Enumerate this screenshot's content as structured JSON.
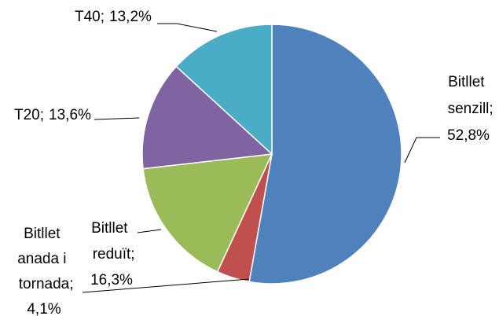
{
  "chart_data": {
    "type": "pie",
    "categories": [
      "Bitllet senzill",
      "Bitllet anada i tornada",
      "Bitllet reduït",
      "T20",
      "T40"
    ],
    "values": [
      52.8,
      4.1,
      16.3,
      13.6,
      13.2
    ],
    "value_labels": [
      "52,8%",
      "4,1%",
      "16,3%",
      "13,6%",
      "13,2%"
    ],
    "label_separator": ";",
    "colors": [
      "#4f81bd",
      "#c0504d",
      "#9bbb59",
      "#8064a2",
      "#4bacc6"
    ]
  }
}
